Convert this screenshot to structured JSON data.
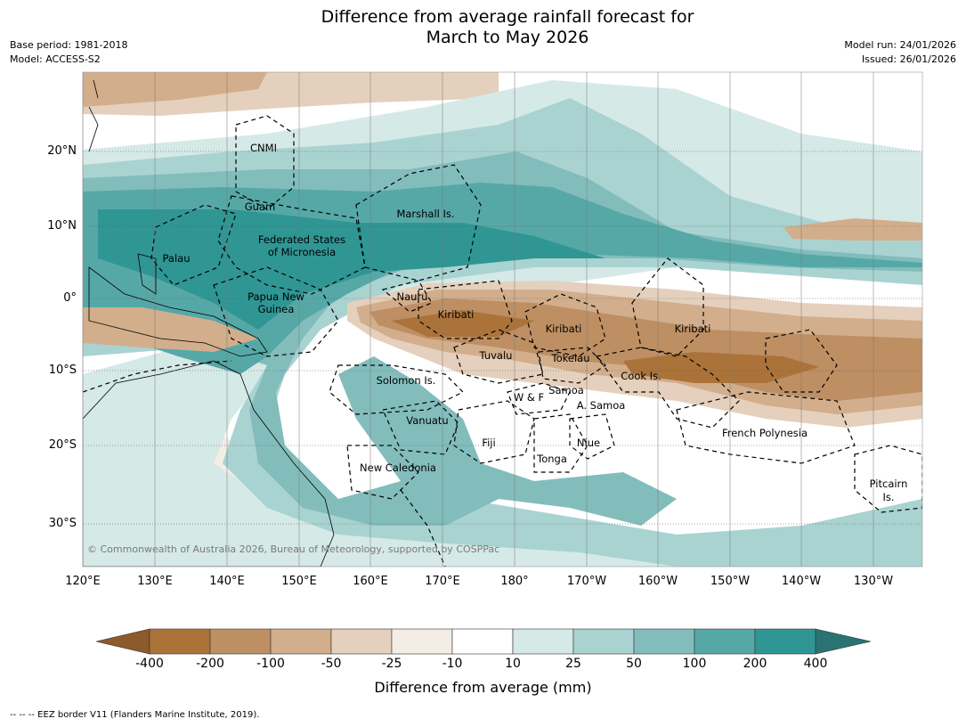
{
  "title_line1": "Difference from average rainfall forecast for",
  "title_line2": "March to May 2026",
  "base_period": "Base period: 1981-2018",
  "model": "Model: ACCESS-S2",
  "model_run": "Model run: 24/01/2026",
  "issued": "Issued: 26/01/2026",
  "copyright": "© Commonwealth of Australia 2026, Bureau of Meteorology, supported by COSPPac",
  "footer": "--  --  -- EEZ border V11 (Flanders Marine Institute, 2019).",
  "lat_labels": [
    "20°N",
    "10°N",
    "0°",
    "10°S",
    "20°S",
    "30°S"
  ],
  "lon_labels": [
    "120°E",
    "130°E",
    "140°E",
    "150°E",
    "160°E",
    "170°E",
    "180°",
    "170°W",
    "160°W",
    "150°W",
    "140°W",
    "130°W"
  ],
  "colorbar": {
    "label": "Difference from average (mm)",
    "ticks": [
      "-400",
      "-200",
      "-100",
      "-50",
      "-25",
      "-10",
      "10",
      "25",
      "50",
      "100",
      "200",
      "400"
    ],
    "colors": [
      "#8c5a2b",
      "#ab7339",
      "#bd8f63",
      "#d2ae8c",
      "#e5d0bd",
      "#f3ede6",
      "#ffffff",
      "#d5e9e7",
      "#a9d3d1",
      "#82bdbc",
      "#56a8a7",
      "#2f9694",
      "#2a7373"
    ]
  },
  "regions": [
    "CNMI",
    "Guam",
    "Marshall Is.",
    "Federated States",
    "of Micronesia",
    "Palau",
    "Papua New",
    "Guinea",
    "Nauru",
    "Kiribati",
    "Kiribati",
    "Kiribati",
    "Tuvalu",
    "Tokelau",
    "Cook Is.",
    "Solomon Is.",
    "W & F",
    "Samoa",
    "A. Samoa",
    "Vanuatu",
    "Fiji",
    "Niue",
    "Tonga",
    "French Polynesia",
    "New Caledonia",
    "Pitcairn",
    "Is."
  ]
}
